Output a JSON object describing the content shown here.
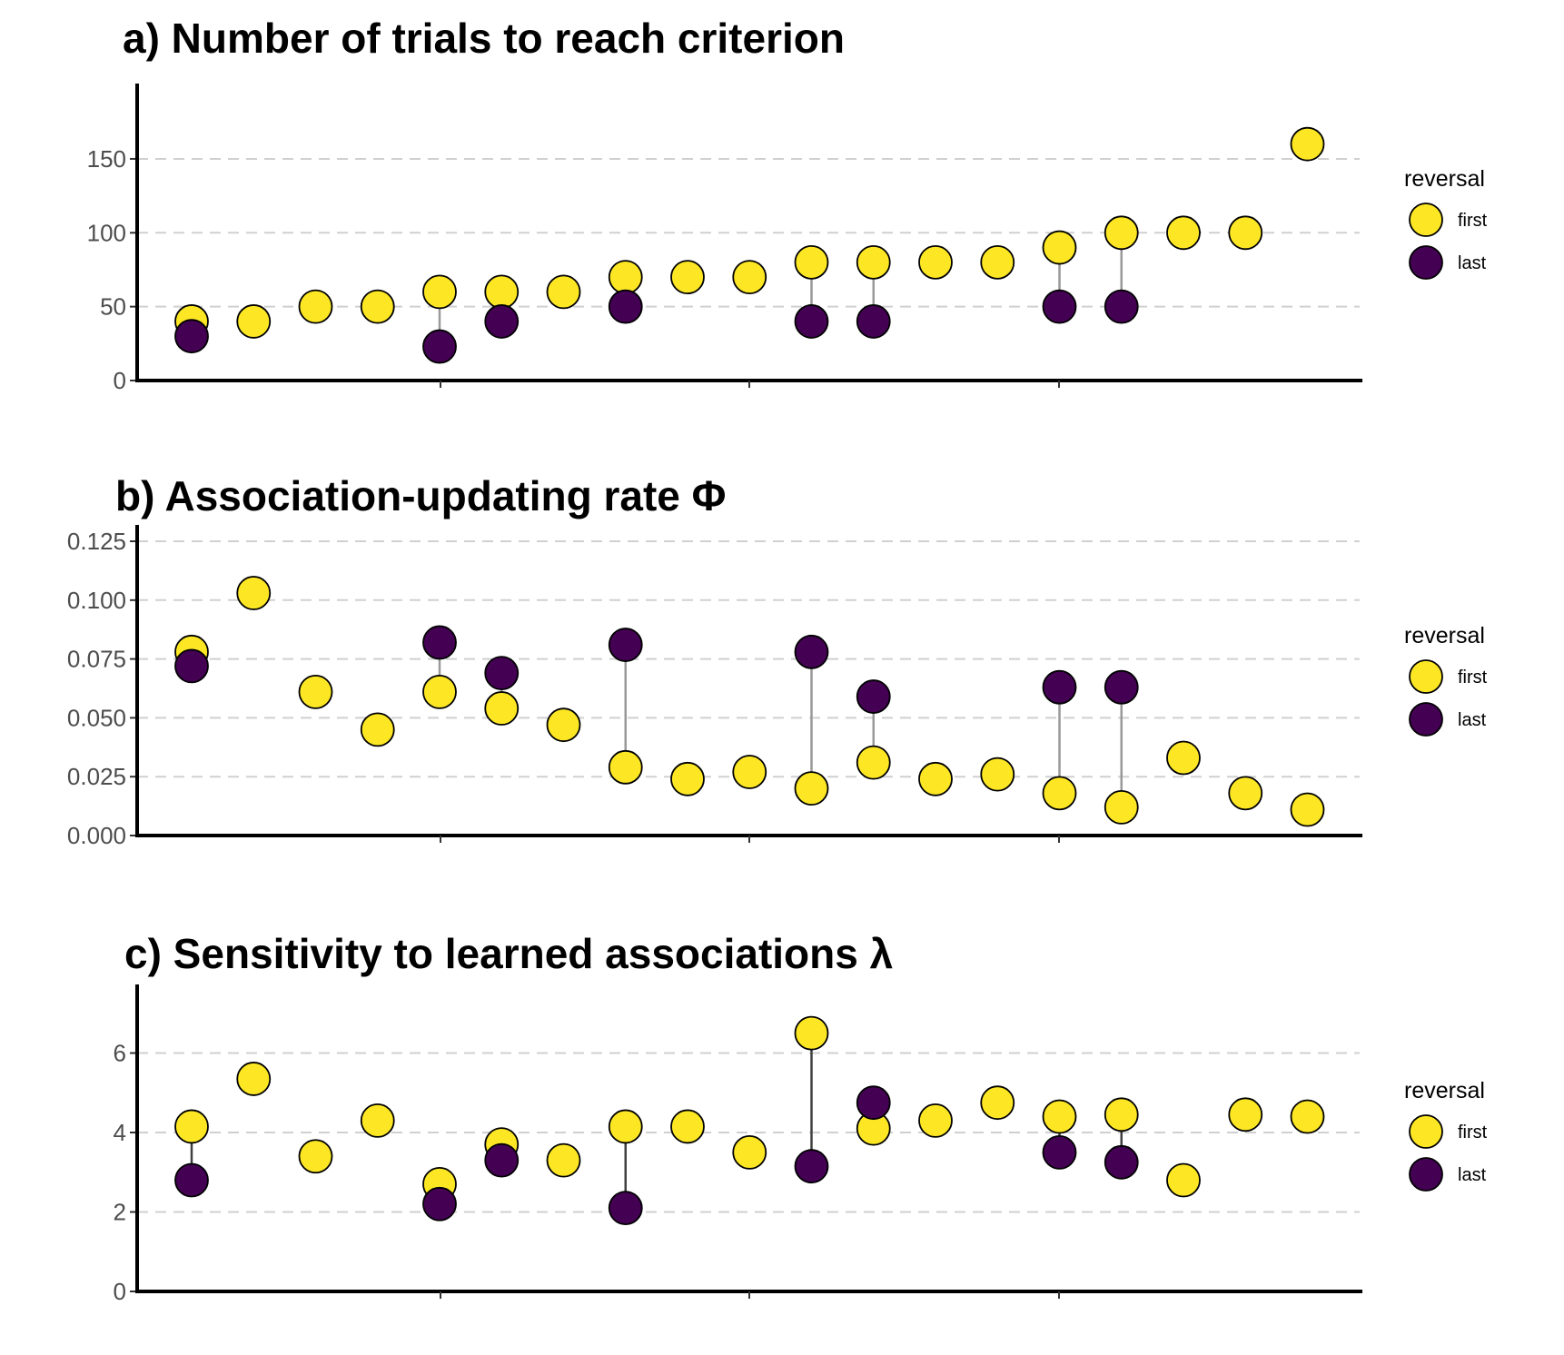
{
  "chart_data": [
    {
      "type": "scatter",
      "title": "a) Number of trials to reach criterion",
      "xlabel": "",
      "ylabel": "",
      "ylim": [
        0,
        185
      ],
      "yticks": [
        0,
        50,
        100,
        150
      ],
      "tick_labels": [
        "0",
        "50",
        "100",
        "150"
      ],
      "grid": "horizontal dashed",
      "legend": {
        "title": "reversal",
        "placement": "right",
        "entries": [
          "first",
          "last"
        ]
      },
      "colors": {
        "first": "#fde725",
        "last": "#440154",
        "connector": "#999999"
      },
      "x": [
        1,
        2,
        3,
        4,
        5,
        6,
        7,
        8,
        9,
        10,
        11,
        12,
        13,
        14,
        15,
        16,
        17,
        18,
        19
      ],
      "series": [
        {
          "name": "first",
          "values": [
            40,
            40,
            50,
            50,
            60,
            60,
            60,
            70,
            70,
            70,
            80,
            80,
            80,
            80,
            90,
            100,
            100,
            100,
            160
          ]
        },
        {
          "name": "last",
          "values": [
            30,
            null,
            null,
            null,
            23,
            40,
            null,
            50,
            null,
            null,
            40,
            40,
            null,
            null,
            50,
            50,
            null,
            null,
            null
          ]
        }
      ]
    },
    {
      "type": "scatter",
      "title": "b) Association-updating rate Φ",
      "xlabel": "",
      "ylabel": "",
      "ylim": [
        0,
        0.125
      ],
      "yticks": [
        0,
        0.025,
        0.05,
        0.075,
        0.1,
        0.125
      ],
      "tick_labels": [
        "0.000",
        "0.025",
        "0.050",
        "0.075",
        "0.100",
        "0.125"
      ],
      "grid": "horizontal dashed",
      "legend": {
        "title": "reversal",
        "placement": "right",
        "entries": [
          "first",
          "last"
        ]
      },
      "colors": {
        "first": "#fde725",
        "last": "#440154",
        "connector": "#999999"
      },
      "x": [
        1,
        2,
        3,
        4,
        5,
        6,
        7,
        8,
        9,
        10,
        11,
        12,
        13,
        14,
        15,
        16,
        17,
        18,
        19
      ],
      "series": [
        {
          "name": "first",
          "values": [
            0.078,
            0.103,
            0.061,
            0.045,
            0.061,
            0.054,
            0.047,
            0.029,
            0.024,
            0.027,
            0.02,
            0.031,
            0.024,
            0.026,
            0.018,
            0.012,
            0.033,
            0.018,
            0.011
          ]
        },
        {
          "name": "last",
          "values": [
            0.072,
            null,
            null,
            null,
            0.082,
            0.069,
            null,
            0.081,
            null,
            null,
            0.078,
            0.059,
            null,
            null,
            0.063,
            0.063,
            null,
            null,
            null
          ]
        }
      ]
    },
    {
      "type": "scatter",
      "title": "c) Sensitivity to learned associations λ",
      "xlabel": "",
      "ylabel": "",
      "ylim": [
        0,
        7.2
      ],
      "yticks": [
        0,
        2,
        4,
        6
      ],
      "tick_labels": [
        "0",
        "2",
        "4",
        "6"
      ],
      "grid": "horizontal dashed",
      "legend": {
        "title": "reversal",
        "placement": "right",
        "entries": [
          "first",
          "last"
        ]
      },
      "colors": {
        "first": "#fde725",
        "last": "#440154",
        "connector": "#404040"
      },
      "x": [
        1,
        2,
        3,
        4,
        5,
        6,
        7,
        8,
        9,
        10,
        11,
        12,
        13,
        14,
        15,
        16,
        17,
        18,
        19
      ],
      "series": [
        {
          "name": "first",
          "values": [
            4.15,
            5.35,
            3.4,
            4.3,
            2.7,
            3.7,
            3.3,
            4.15,
            4.15,
            3.5,
            6.5,
            4.1,
            4.3,
            4.75,
            4.4,
            4.45,
            2.8,
            4.45,
            4.4
          ]
        },
        {
          "name": "last",
          "values": [
            2.8,
            null,
            null,
            null,
            2.2,
            3.3,
            null,
            2.1,
            null,
            null,
            3.15,
            4.75,
            null,
            null,
            3.5,
            3.25,
            null,
            null,
            null
          ]
        }
      ]
    }
  ]
}
